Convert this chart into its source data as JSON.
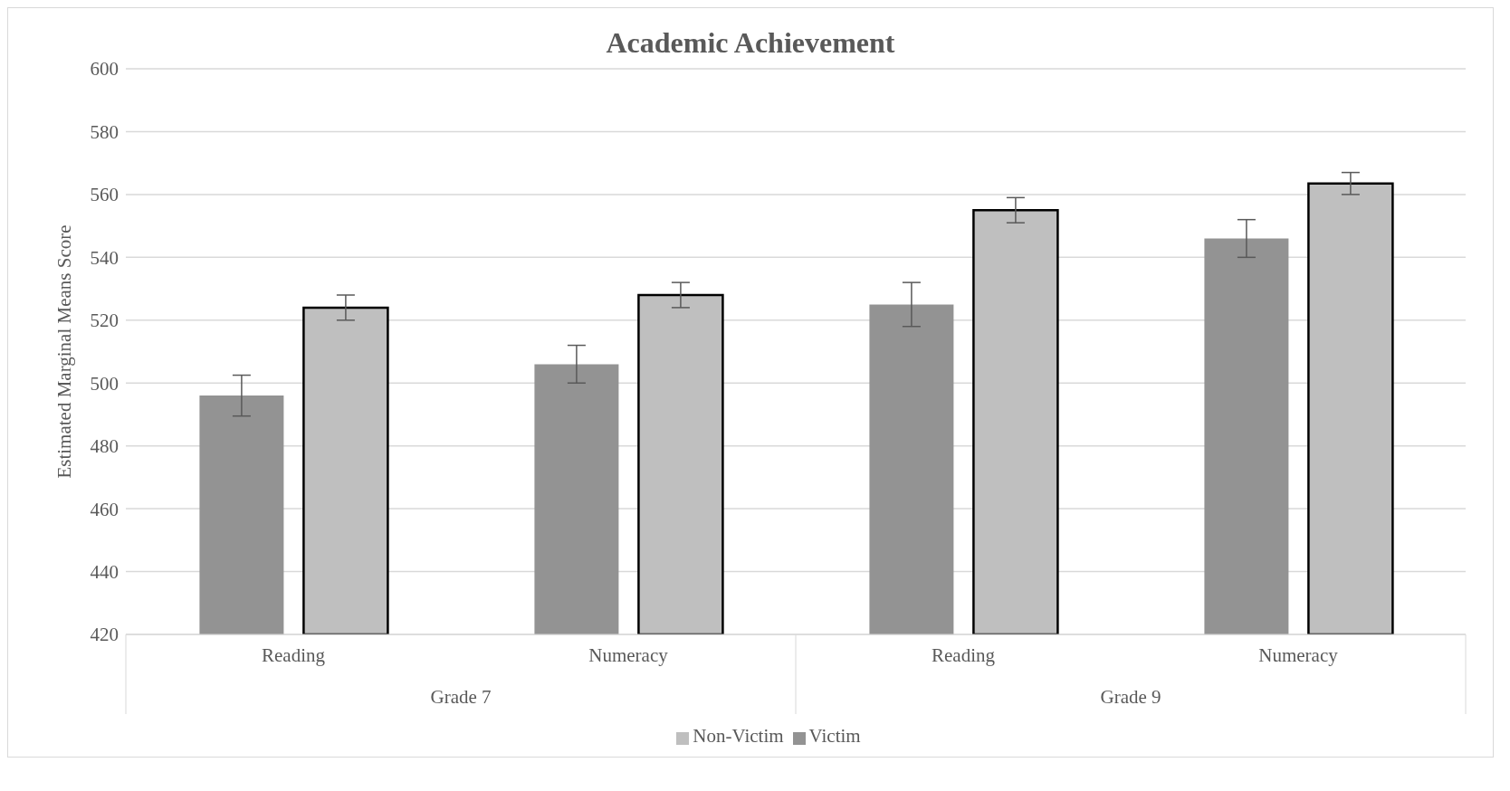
{
  "chart_data": {
    "type": "bar",
    "title": "Academic Achievement",
    "ylabel": "Estimated Marginal Means Score",
    "categories": [
      "Reading",
      "Numeracy",
      "Reading",
      "Numeracy"
    ],
    "annotations": [
      "Grade 7",
      "Grade 9"
    ],
    "series": [
      {
        "name": "Victim",
        "color": "#939393",
        "values": [
          496,
          506,
          525,
          546
        ],
        "errors": [
          6.5,
          6,
          7,
          6
        ]
      },
      {
        "name": "Non-Victim",
        "color": "#bfbfbf",
        "values": [
          524,
          528,
          555,
          563.5
        ],
        "errors": [
          4,
          4,
          4,
          3.5
        ]
      }
    ],
    "ylim": [
      420,
      600
    ],
    "yticks": [
      420,
      440,
      460,
      480,
      500,
      520,
      540,
      560,
      580,
      600
    ],
    "grid": "y",
    "legend": "bottom"
  }
}
